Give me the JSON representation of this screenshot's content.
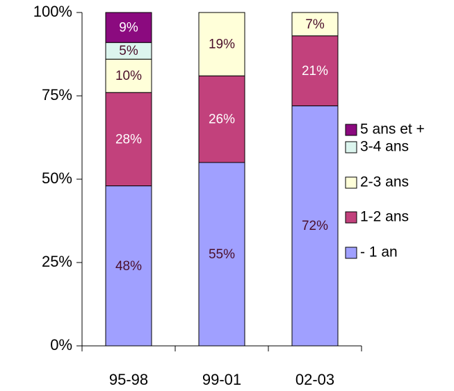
{
  "chart_data": {
    "type": "stacked_bar",
    "categories": [
      "95-98",
      "99-01",
      "02-03"
    ],
    "series": [
      {
        "name": "- 1 an",
        "color": "#a0a0ff",
        "label_color": "#4a0e2a",
        "values": [
          48,
          55,
          72
        ],
        "value_labels": [
          "48%",
          "55%",
          "72%"
        ]
      },
      {
        "name": "1-2 ans",
        "color": "#c2417c",
        "label_color": "#ffffff",
        "values": [
          28,
          26,
          21
        ],
        "value_labels": [
          "28%",
          "26%",
          "21%"
        ]
      },
      {
        "name": "2-3 ans",
        "color": "#ffffd9",
        "label_color": "#4a0e2a",
        "values": [
          10,
          19,
          7
        ],
        "value_labels": [
          "10%",
          "19%",
          "7%"
        ]
      },
      {
        "name": "3-4 ans",
        "color": "#dcf5ee",
        "label_color": "#4a0e2a",
        "values": [
          5,
          0,
          0
        ],
        "value_labels": [
          "5%",
          null,
          null
        ]
      },
      {
        "name": "5 ans et +",
        "color": "#8b0a7f",
        "label_color": "#ffffff",
        "values": [
          9,
          0,
          0
        ],
        "value_labels": [
          "9%",
          null,
          null
        ]
      }
    ],
    "ylim": [
      0,
      100
    ],
    "yticks": [
      {
        "value": 0,
        "label": "0%"
      },
      {
        "value": 25,
        "label": "25%"
      },
      {
        "value": 50,
        "label": "50%"
      },
      {
        "value": 75,
        "label": "75%"
      },
      {
        "value": 100,
        "label": "100%"
      }
    ],
    "legend": "right"
  }
}
